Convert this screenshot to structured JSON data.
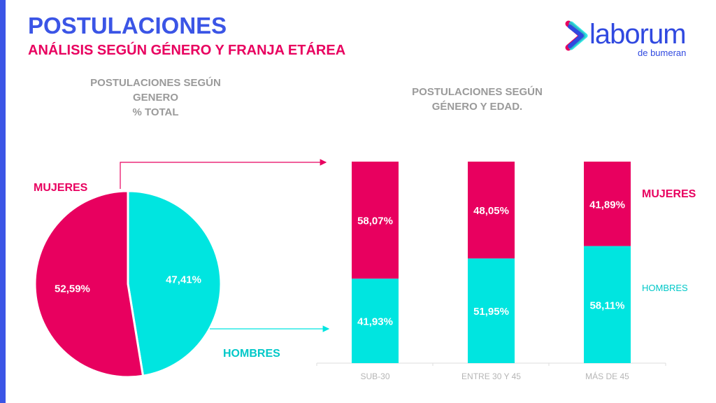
{
  "header": {
    "title": "POSTULACIONES",
    "subtitle": "ANÁLISIS SEGÚN GÉNERO Y FRANJA ETÁREA"
  },
  "logo": {
    "name": "laborum",
    "tagline": "de bumeran",
    "colors": [
      "#e8005f",
      "#00e5e0",
      "#3049e0"
    ]
  },
  "colors": {
    "accent": "#3b55e6",
    "mujeres": "#e8005f",
    "hombres": "#00e5e0"
  },
  "chart_data": [
    {
      "type": "pie",
      "title_lines": [
        "POSTULACIONES SEGÚN",
        "GENERO",
        "% TOTAL"
      ],
      "slices": [
        {
          "name": "HOMBRES",
          "value": 47.41,
          "label": "47,41%"
        },
        {
          "name": "MUJERES",
          "value": 52.59,
          "label": "52,59%"
        }
      ]
    },
    {
      "type": "bar",
      "stacked": true,
      "title_lines": [
        "POSTULACIONES SEGÚN",
        "GÉNERO Y EDAD."
      ],
      "categories": [
        "SUB-30",
        "ENTRE 30 Y 45",
        "MÁS DE 45"
      ],
      "ylim": [
        0,
        100
      ],
      "series": [
        {
          "name": "HOMBRES",
          "values": [
            41.93,
            51.95,
            58.11
          ],
          "labels": [
            "41,93%",
            "51,95%",
            "58,11%"
          ]
        },
        {
          "name": "MUJERES",
          "values": [
            58.07,
            48.05,
            41.89
          ],
          "labels": [
            "58,07%",
            "48,05%",
            "41,89%"
          ]
        }
      ],
      "legend": "right"
    }
  ]
}
